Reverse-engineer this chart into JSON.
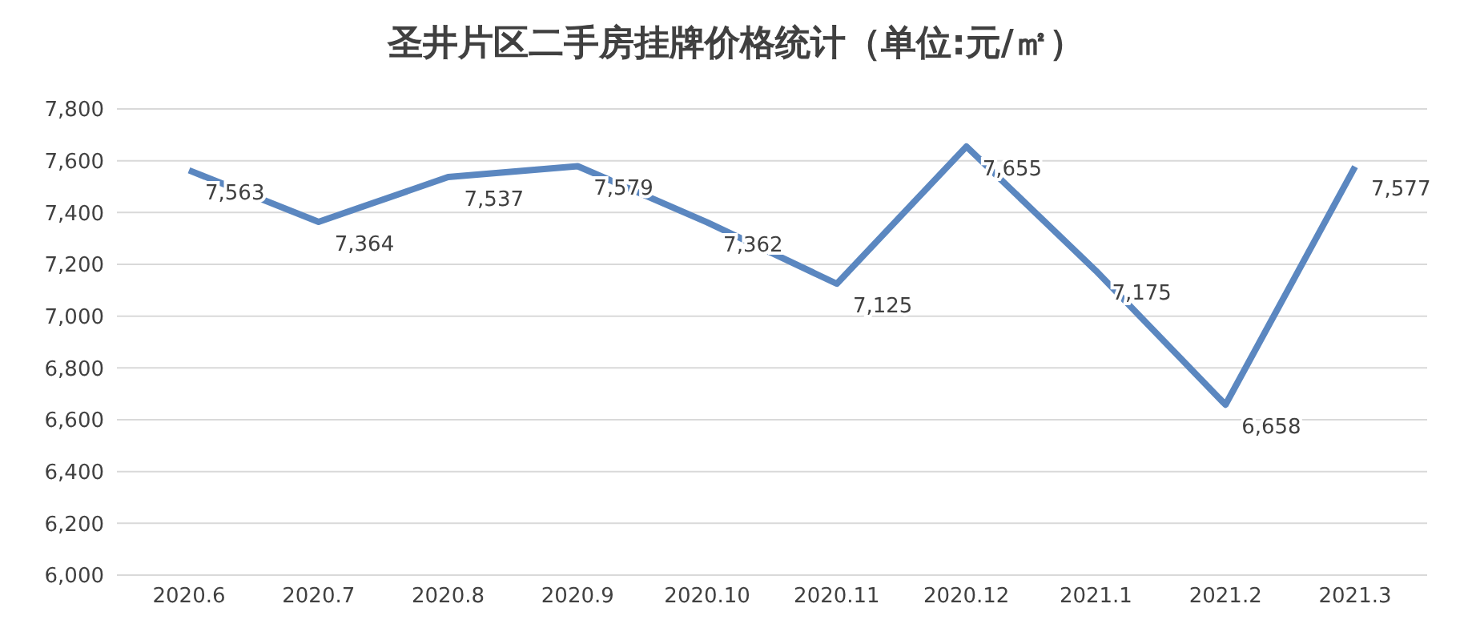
{
  "chart_data": {
    "type": "line",
    "title": "圣井片区二手房挂牌价格统计（单位:元/㎡）",
    "categories": [
      "2020.6",
      "2020.7",
      "2020.8",
      "2020.9",
      "2020.10",
      "2020.11",
      "2020.12",
      "2021.1",
      "2021.2",
      "2021.3"
    ],
    "series": [
      {
        "color": "#5b87c0",
        "values": [
          7563,
          7364,
          7537,
          7579,
          7362,
          7125,
          7655,
          7175,
          6658,
          7577
        ],
        "value_labels": [
          "7,563",
          "7,364",
          "7,537",
          "7,579",
          "7,362",
          "7,125",
          "7,655",
          "7,175",
          "6,658",
          "7,577"
        ]
      }
    ],
    "ylim": [
      6000,
      7800
    ],
    "yticks": [
      {
        "value": 6000,
        "label": "6,000"
      },
      {
        "value": 6200,
        "label": "6,200"
      },
      {
        "value": 6400,
        "label": "6,400"
      },
      {
        "value": 6600,
        "label": "6,600"
      },
      {
        "value": 6800,
        "label": "6,800"
      },
      {
        "value": 7000,
        "label": "7,000"
      },
      {
        "value": 7200,
        "label": "7,200"
      },
      {
        "value": 7400,
        "label": "7,400"
      },
      {
        "value": 7600,
        "label": "7,600"
      },
      {
        "value": 7800,
        "label": "7,800"
      }
    ],
    "grid": "y",
    "marker": "none",
    "line_style": "solid",
    "legend": false
  }
}
